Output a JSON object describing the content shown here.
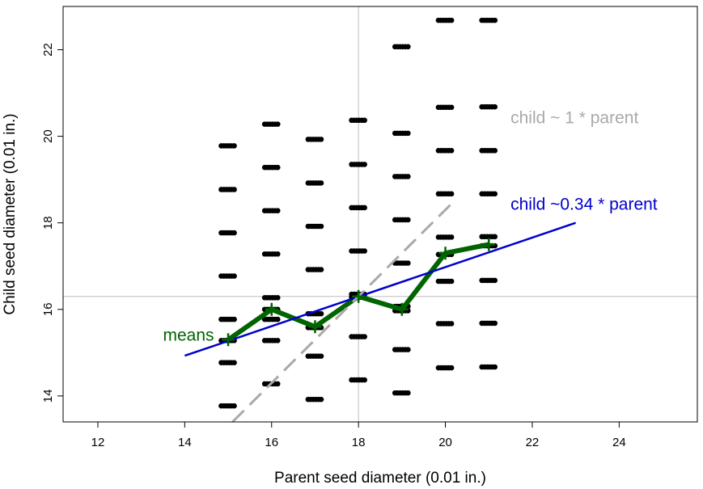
{
  "chart_data": {
    "type": "scatter",
    "xlabel": "Parent seed diameter (0.01 in.)",
    "ylabel": "Child seed diameter (0.01 in.)",
    "xlim": [
      11.2,
      25.8
    ],
    "ylim": [
      13.4,
      23.0
    ],
    "x_ticks": [
      12,
      14,
      16,
      18,
      20,
      22,
      24
    ],
    "x_tick_labels": [
      "12",
      "14",
      "16",
      "18",
      "20",
      "22",
      "24"
    ],
    "y_ticks": [
      14,
      16,
      18,
      20,
      22
    ],
    "y_tick_labels": [
      "14",
      "16",
      "18",
      "20",
      "22"
    ],
    "grid": false,
    "reference_lines": {
      "vertical_x": 18.0,
      "horizontal_y": 16.3
    },
    "scatter_points": {
      "columns": [
        {
          "x": 15,
          "y": [
            13.77,
            14.77,
            15.28,
            15.77,
            16.77,
            17.77,
            18.77,
            19.78
          ]
        },
        {
          "x": 16,
          "y": [
            14.28,
            15.28,
            15.77,
            16.0,
            16.27,
            17.28,
            18.28,
            19.28,
            20.28
          ]
        },
        {
          "x": 17,
          "y": [
            13.92,
            14.92,
            15.58,
            15.9,
            16.92,
            17.92,
            18.92,
            19.93
          ]
        },
        {
          "x": 18,
          "y": [
            14.37,
            15.37,
            16.28,
            16.35,
            17.35,
            18.35,
            19.35,
            20.37
          ]
        },
        {
          "x": 19,
          "y": [
            14.07,
            15.07,
            15.97,
            16.07,
            17.07,
            18.07,
            19.07,
            20.07,
            22.07
          ]
        },
        {
          "x": 20,
          "y": [
            14.65,
            15.67,
            16.65,
            17.27,
            17.67,
            18.67,
            19.67,
            20.67,
            22.68
          ]
        },
        {
          "x": 21,
          "y": [
            14.67,
            15.68,
            16.67,
            17.47,
            17.68,
            18.67,
            19.67,
            20.68,
            22.68
          ]
        }
      ]
    },
    "series": [
      {
        "name": "means",
        "type": "line",
        "color": "#006400",
        "x": [
          15,
          16,
          17,
          18,
          19,
          20,
          21
        ],
        "y": [
          15.3,
          16.0,
          15.6,
          16.3,
          16.0,
          17.3,
          17.5
        ]
      },
      {
        "name": "child ~0.34 * parent",
        "type": "line",
        "color": "#0000cd",
        "x": [
          14,
          23
        ],
        "y": [
          14.93,
          18.0
        ]
      },
      {
        "name": "child ~ 1 * parent",
        "type": "line",
        "style": "dashed",
        "color": "#a9a9a9",
        "x": [
          15.1,
          20.2
        ],
        "y": [
          13.4,
          18.5
        ]
      }
    ],
    "annotations": [
      {
        "text": "means",
        "color": "#006400",
        "x": 13.5,
        "y": 15.28
      },
      {
        "text": "child ~0.34 * parent",
        "color": "#0000cd",
        "x": 21.5,
        "y": 18.3
      },
      {
        "text": "child ~ 1 * parent",
        "color": "#a9a9a9",
        "x": 21.5,
        "y": 20.3
      }
    ]
  }
}
